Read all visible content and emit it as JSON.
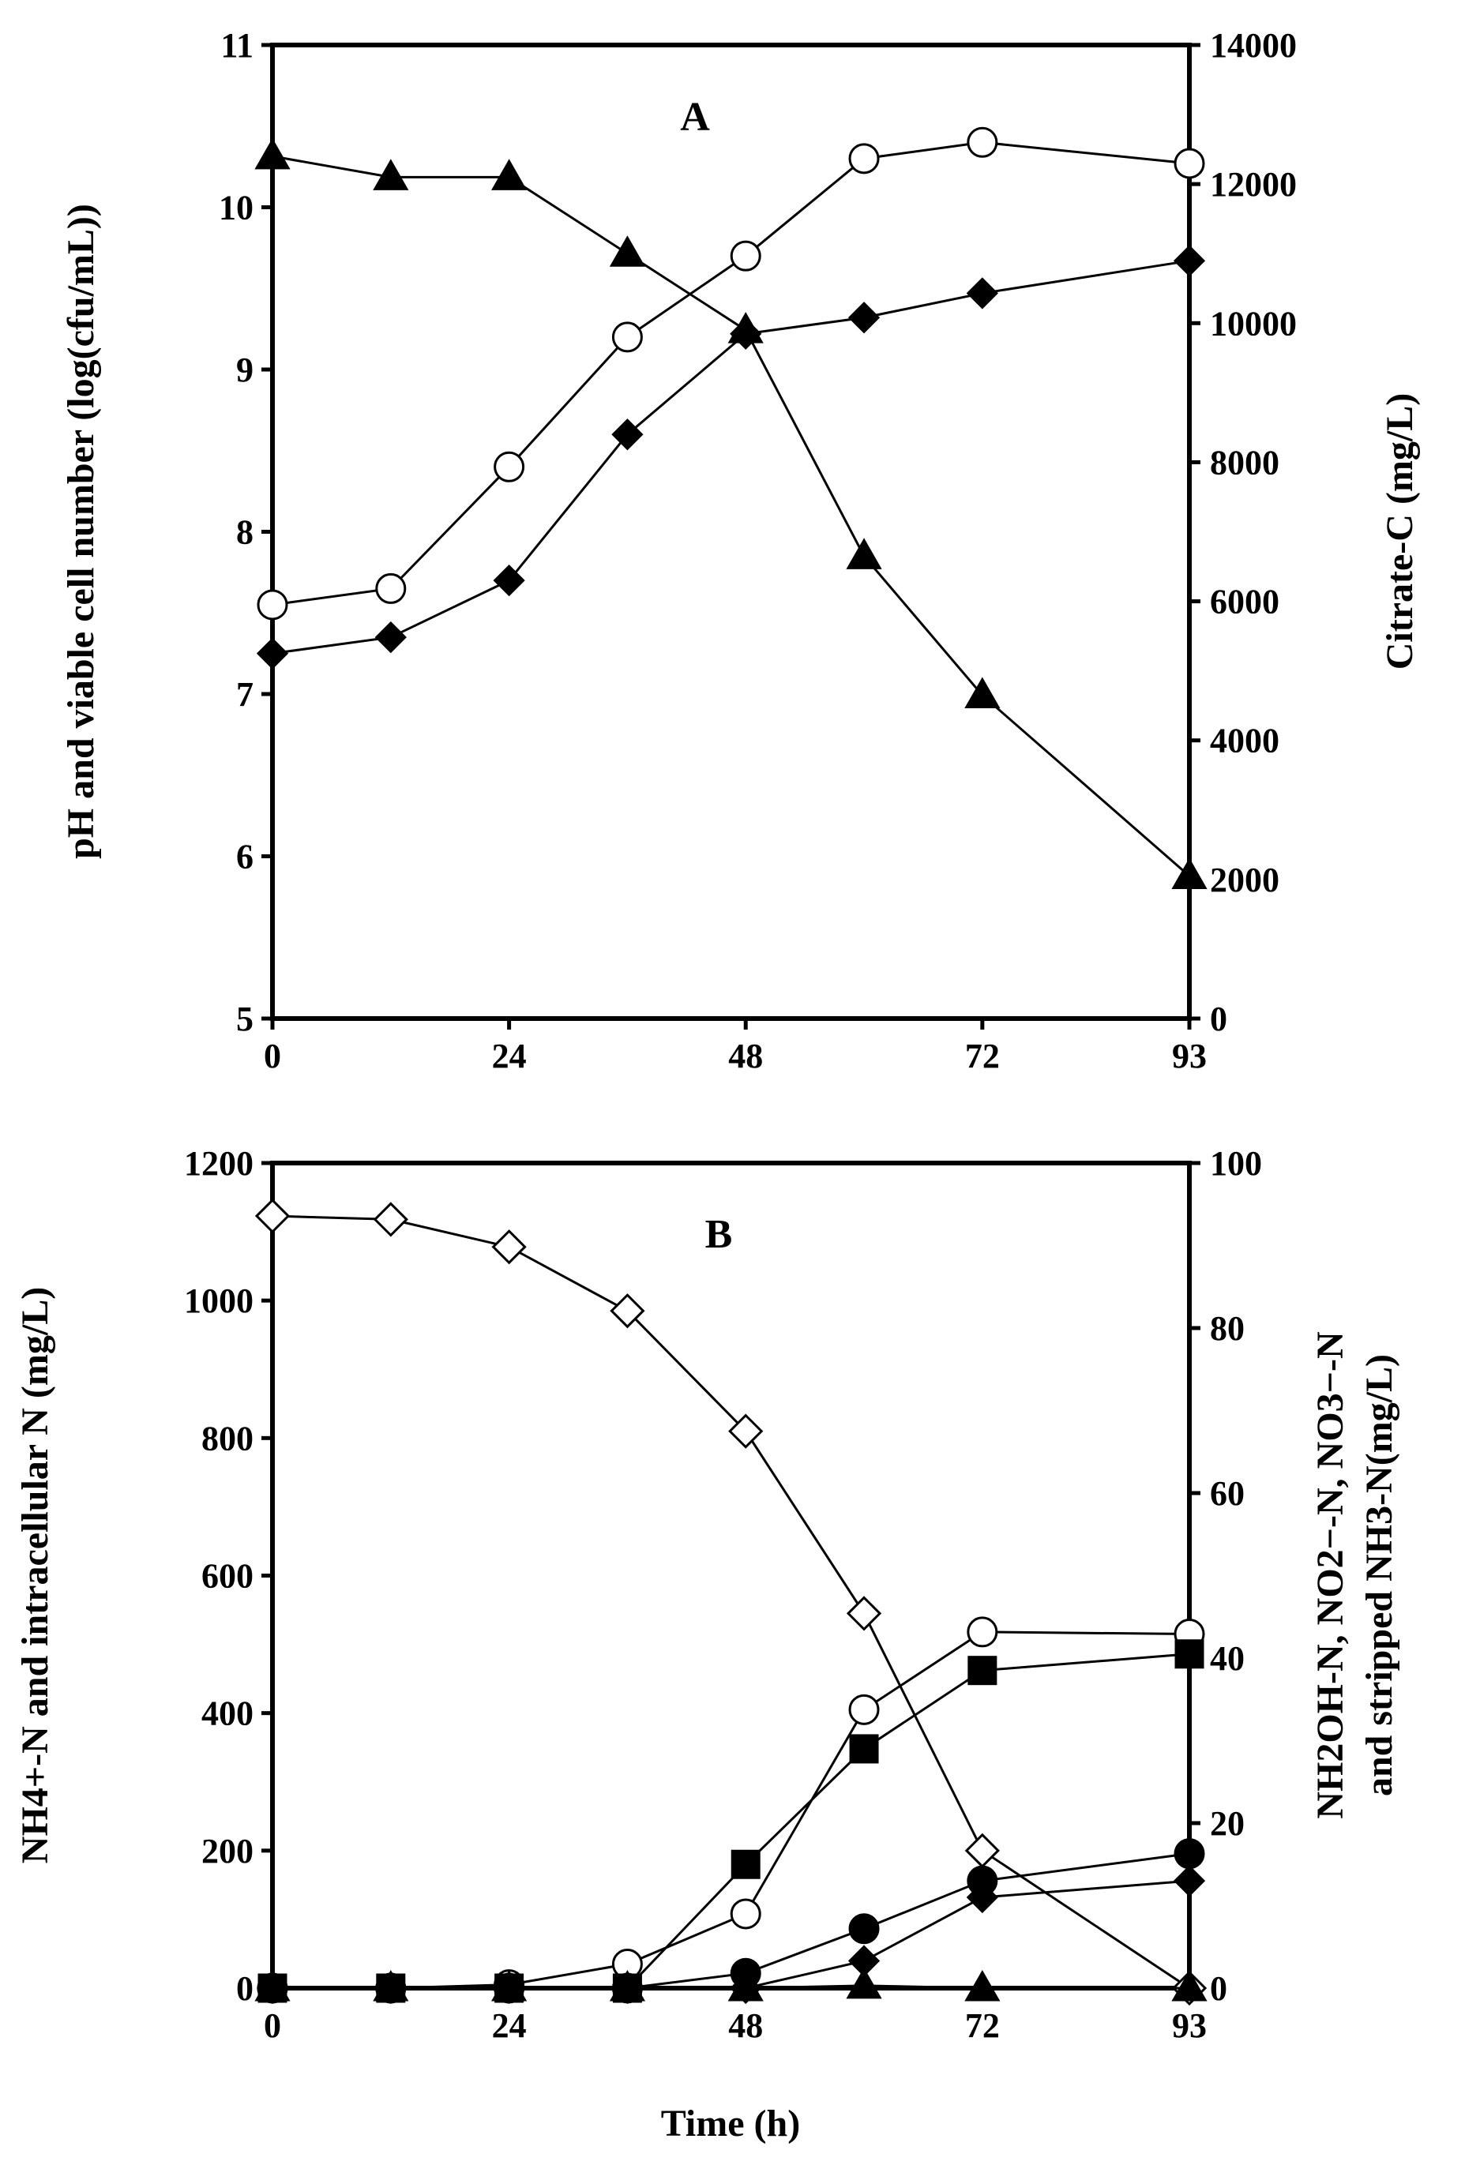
{
  "chart_data": [
    {
      "type": "line",
      "panel_label": "A",
      "x": [
        0,
        12,
        24,
        36,
        48,
        60,
        72,
        93
      ],
      "x_ticks": [
        0,
        24,
        48,
        72,
        93
      ],
      "xlim": [
        0,
        93
      ],
      "y_left_label": "pH and viable cell number  (log(cfu/mL))",
      "y_left_lim": [
        5,
        11
      ],
      "y_left_ticks": [
        5,
        6,
        7,
        8,
        9,
        10,
        11
      ],
      "y_right_label": "Citrate-C (mg/L)",
      "y_right_lim": [
        0,
        14000
      ],
      "y_right_ticks": [
        0,
        2000,
        4000,
        6000,
        8000,
        10000,
        12000,
        14000
      ],
      "series": [
        {
          "name": "Citrate-C",
          "marker": "triangle-filled",
          "axis": "right",
          "values": [
            12400,
            12100,
            12100,
            11000,
            9900,
            6650,
            4650,
            2050
          ]
        },
        {
          "name": "Viable cell number",
          "marker": "circle-open",
          "axis": "left",
          "values": [
            7.55,
            7.65,
            8.4,
            9.2,
            9.7,
            10.3,
            10.4,
            10.27
          ]
        },
        {
          "name": "pH",
          "marker": "diamond-filled",
          "axis": "left",
          "values": [
            7.25,
            7.35,
            7.7,
            8.6,
            9.22,
            9.32,
            9.47,
            9.67
          ]
        }
      ]
    },
    {
      "type": "line",
      "panel_label": "B",
      "x": [
        0,
        12,
        24,
        36,
        48,
        60,
        72,
        93
      ],
      "x_ticks": [
        0,
        24,
        48,
        72,
        93
      ],
      "xlim": [
        0,
        93
      ],
      "xlabel": "Time (h)",
      "y_left_label": "NH4+-N and intracellular N (mg/L)",
      "y_left_lim": [
        0,
        1200
      ],
      "y_left_ticks": [
        0,
        200,
        400,
        600,
        800,
        1000,
        1200
      ],
      "y_right_label_line1": "NH2OH-N, NO2−-N, NO3−-N",
      "y_right_label_line2": "and stripped NH3-N(mg/L)",
      "y_right_lim": [
        0,
        100
      ],
      "y_right_ticks": [
        0,
        20,
        40,
        60,
        80,
        100
      ],
      "series": [
        {
          "name": "NH4+-N",
          "marker": "diamond-open",
          "axis": "left",
          "values": [
            1123,
            1118,
            1078,
            985,
            810,
            545,
            200,
            0
          ]
        },
        {
          "name": "Intracellular N",
          "marker": "circle-open",
          "axis": "left",
          "values": [
            0,
            0,
            5,
            35,
            108,
            405,
            518,
            515
          ]
        },
        {
          "name": "Stripped NH3-N",
          "marker": "square-filled",
          "axis": "right",
          "values": [
            0,
            0,
            0,
            0,
            15,
            29,
            38.5,
            40.5
          ]
        },
        {
          "name": "NO3−-N",
          "marker": "circle-filled",
          "axis": "right",
          "values": [
            0,
            0,
            0,
            0,
            1.8,
            7.2,
            13,
            16.3
          ]
        },
        {
          "name": "NO2−-N",
          "marker": "diamond-filled",
          "axis": "right",
          "values": [
            0,
            0,
            0,
            0,
            0,
            3.3,
            11,
            13
          ]
        },
        {
          "name": "NH2OH-N",
          "marker": "triangle-filled",
          "axis": "right",
          "values": [
            0,
            0,
            0,
            0,
            0,
            0.3,
            0,
            0
          ]
        }
      ]
    }
  ]
}
